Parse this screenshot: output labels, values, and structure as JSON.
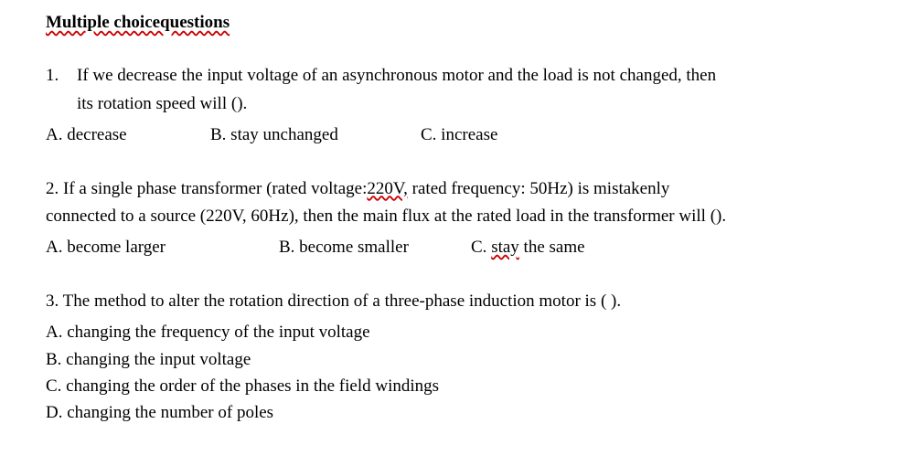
{
  "heading": "Multiple choicequestions",
  "q1": {
    "number": "1.",
    "line1": "If we decrease the input voltage of an asynchronous motor and the load is not changed, then",
    "line2": "its rotation speed will ().",
    "optA": "A. decrease",
    "optB": "B. stay unchanged",
    "optC": "C. increase"
  },
  "q2": {
    "line1a": "2. If a single phase transformer (rated voltage:",
    "line1b": "220V,",
    "line1c": " rated frequency: 50Hz) is mistakenly",
    "line2": "connected to a source (220V, 60Hz), then the main flux at the rated load in the transformer will ().",
    "optA": "A. become larger",
    "optB": "B. become smaller",
    "optC_prefix": "C. ",
    "optC_underlined": "stay",
    "optC_suffix": " the same"
  },
  "q3": {
    "text": "3. The method to alter the rotation direction of a three-phase induction motor is ( ).",
    "optA": "A. changing the frequency of the input voltage",
    "optB": "B. changing the input voltage",
    "optC": "C. changing the order of the phases in the field windings",
    "optD": "D. changing the number of poles"
  }
}
